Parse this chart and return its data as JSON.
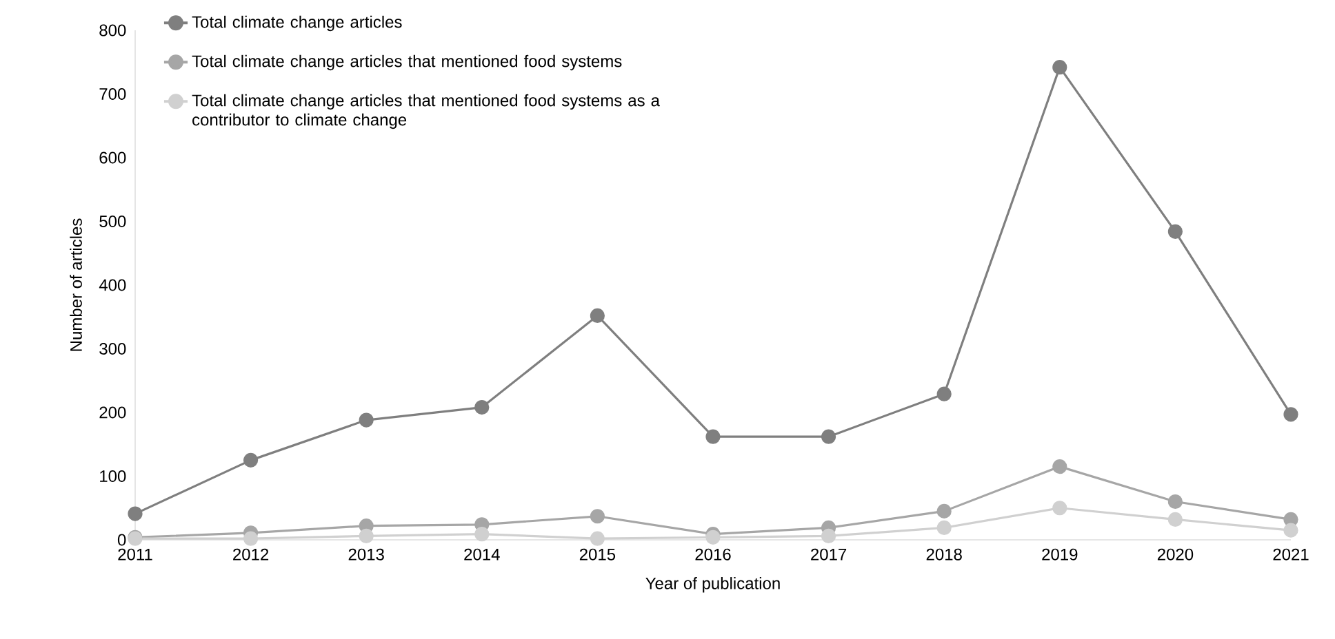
{
  "chart_data": {
    "type": "line",
    "xlabel": "Year of publication",
    "ylabel": "Number of articles",
    "categories": [
      "2011",
      "2012",
      "2013",
      "2014",
      "2015",
      "2016",
      "2017",
      "2018",
      "2019",
      "2020",
      "2021"
    ],
    "series": [
      {
        "name": "Total climate change articles",
        "color": "#7f7f7f",
        "values": [
          41,
          125,
          188,
          208,
          352,
          162,
          162,
          229,
          742,
          484,
          197
        ]
      },
      {
        "name": "Total climate change articles that mentioned food systems",
        "color": "#a6a6a6",
        "values": [
          4,
          11,
          22,
          24,
          37,
          9,
          19,
          45,
          115,
          60,
          32
        ]
      },
      {
        "name": "Total climate change articles that mentioned food systems as a contributor to climate change",
        "color": "#d0d0d0",
        "values": [
          2,
          2,
          6,
          9,
          2,
          4,
          6,
          19,
          50,
          32,
          15
        ]
      }
    ],
    "ylim": [
      0,
      800
    ],
    "yticks": [
      0,
      100,
      200,
      300,
      400,
      500,
      600,
      700,
      800
    ],
    "legend": "top left",
    "marker": "circle",
    "line_style": "solid",
    "grid": false
  }
}
